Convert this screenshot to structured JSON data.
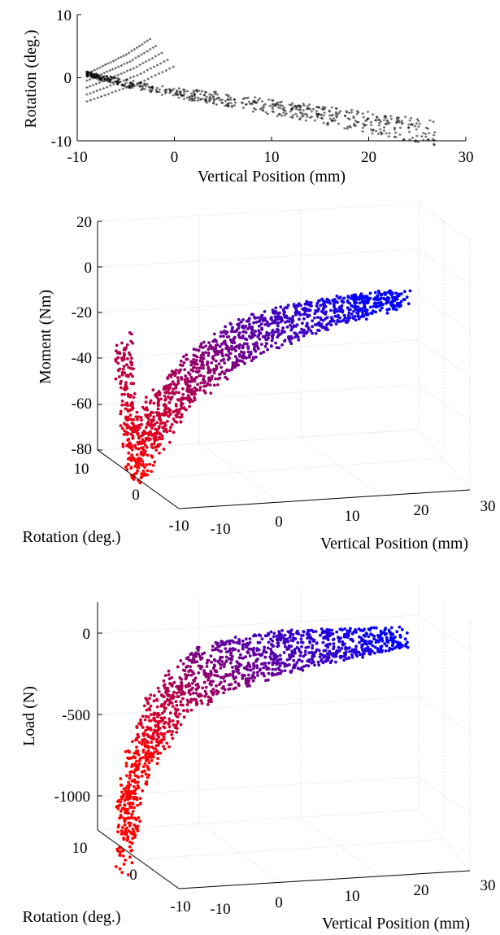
{
  "chart_data": [
    {
      "type": "scatter",
      "title": "",
      "xlabel": "Vertical Position (mm)",
      "ylabel": "Rotation (deg.)",
      "xlim": [
        -10,
        30
      ],
      "ylim": [
        -10,
        10
      ],
      "x_ticks": [
        "-10",
        "0",
        "10",
        "20",
        "30"
      ],
      "y_ticks": [
        "-10",
        "0",
        "10"
      ],
      "marker": "*",
      "color": "#000000",
      "trend": {
        "x": [
          -9,
          -5,
          0,
          5,
          10,
          15,
          20,
          25,
          27
        ],
        "y": [
          0.5,
          -1,
          -2.5,
          -3.5,
          -4.8,
          -6,
          -7.2,
          -8.5,
          -9
        ]
      },
      "upper_branch": {
        "x": [
          -9,
          -7,
          -5,
          -3.5,
          -2.5
        ],
        "y": [
          0.5,
          2,
          3.5,
          5,
          6
        ]
      }
    },
    {
      "type": "scatter3d",
      "title": "",
      "xlabel": "Vertical Position (mm)",
      "ylabel": "Rotation (deg.)",
      "zlabel": "Moment (Nm)",
      "xlim": [
        -10,
        30
      ],
      "ylim": [
        -10,
        10
      ],
      "zlim": [
        -80,
        20
      ],
      "x_ticks": [
        "-10",
        "0",
        "10",
        "20",
        "30"
      ],
      "y_ticks": [
        "-10",
        "0",
        "10"
      ],
      "z_ticks": [
        "-80",
        "-60",
        "-40",
        "-20",
        "0",
        "20"
      ],
      "color_scale": [
        "#ff0000",
        "#0000ff"
      ],
      "grid": true,
      "trend": {
        "x": [
          -9,
          -8,
          -7,
          -5,
          0,
          5,
          10,
          15,
          20,
          25,
          27
        ],
        "z": [
          -30,
          -70,
          -76,
          -62,
          -42,
          -30,
          -24,
          -20,
          -17,
          -15,
          -14
        ]
      }
    },
    {
      "type": "scatter3d",
      "title": "",
      "xlabel": "Vertical Position (mm)",
      "ylabel": "Rotation (deg.)",
      "zlabel": "Load (N)",
      "xlim": [
        -10,
        30
      ],
      "ylim": [
        -10,
        10
      ],
      "zlim": [
        -1200,
        200
      ],
      "x_ticks": [
        "-10",
        "0",
        "10",
        "20",
        "30"
      ],
      "y_ticks": [
        "-10",
        "0",
        "10"
      ],
      "z_ticks": [
        "-1000",
        "-500",
        "0"
      ],
      "color_scale": [
        "#ff0000",
        "#0000ff"
      ],
      "grid": true,
      "trend": {
        "x": [
          -9,
          -8,
          -6,
          -3,
          0,
          5,
          10,
          15,
          20,
          25,
          27
        ],
        "z": [
          -1150,
          -900,
          -650,
          -450,
          -330,
          -260,
          -220,
          -200,
          -190,
          -180,
          -175
        ]
      }
    }
  ]
}
